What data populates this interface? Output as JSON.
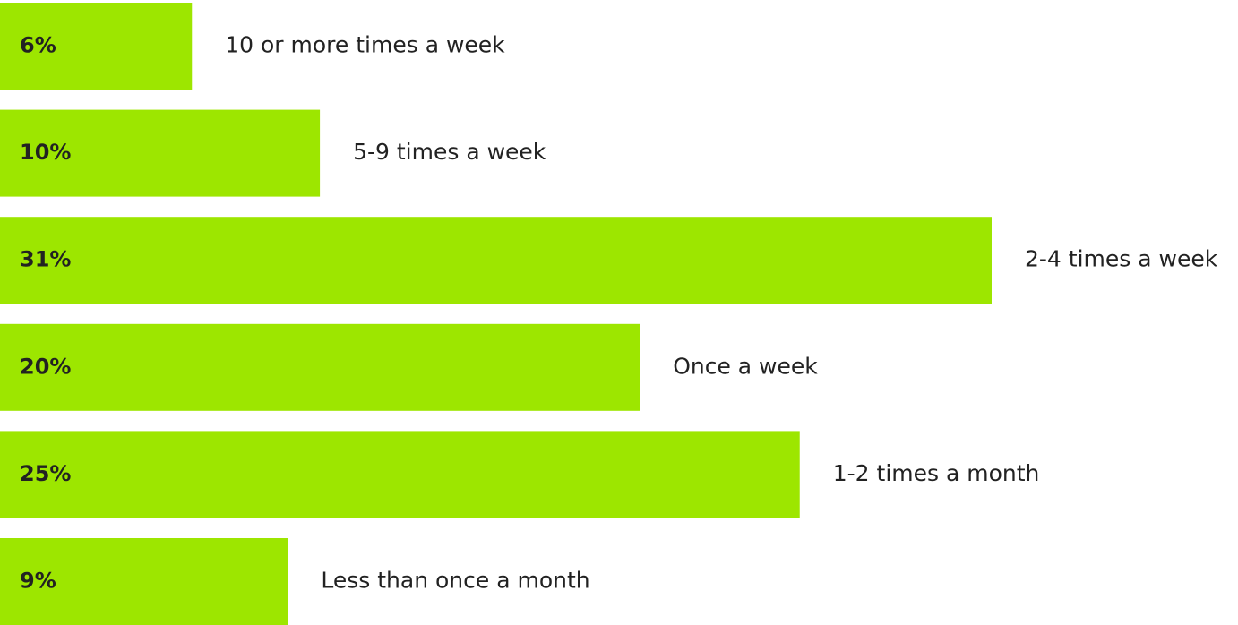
{
  "chart_data": {
    "type": "bar",
    "orientation": "horizontal",
    "categories": [
      "10 or more times a week",
      "5-9 times a week",
      "2-4 times a week",
      "Once a week",
      "1-2 times a month",
      "Less than once a month"
    ],
    "values": [
      6,
      10,
      31,
      20,
      25,
      9
    ],
    "value_labels": [
      "6%",
      "10%",
      "31%",
      "20%",
      "25%",
      "9%"
    ],
    "color": "#9de600"
  }
}
